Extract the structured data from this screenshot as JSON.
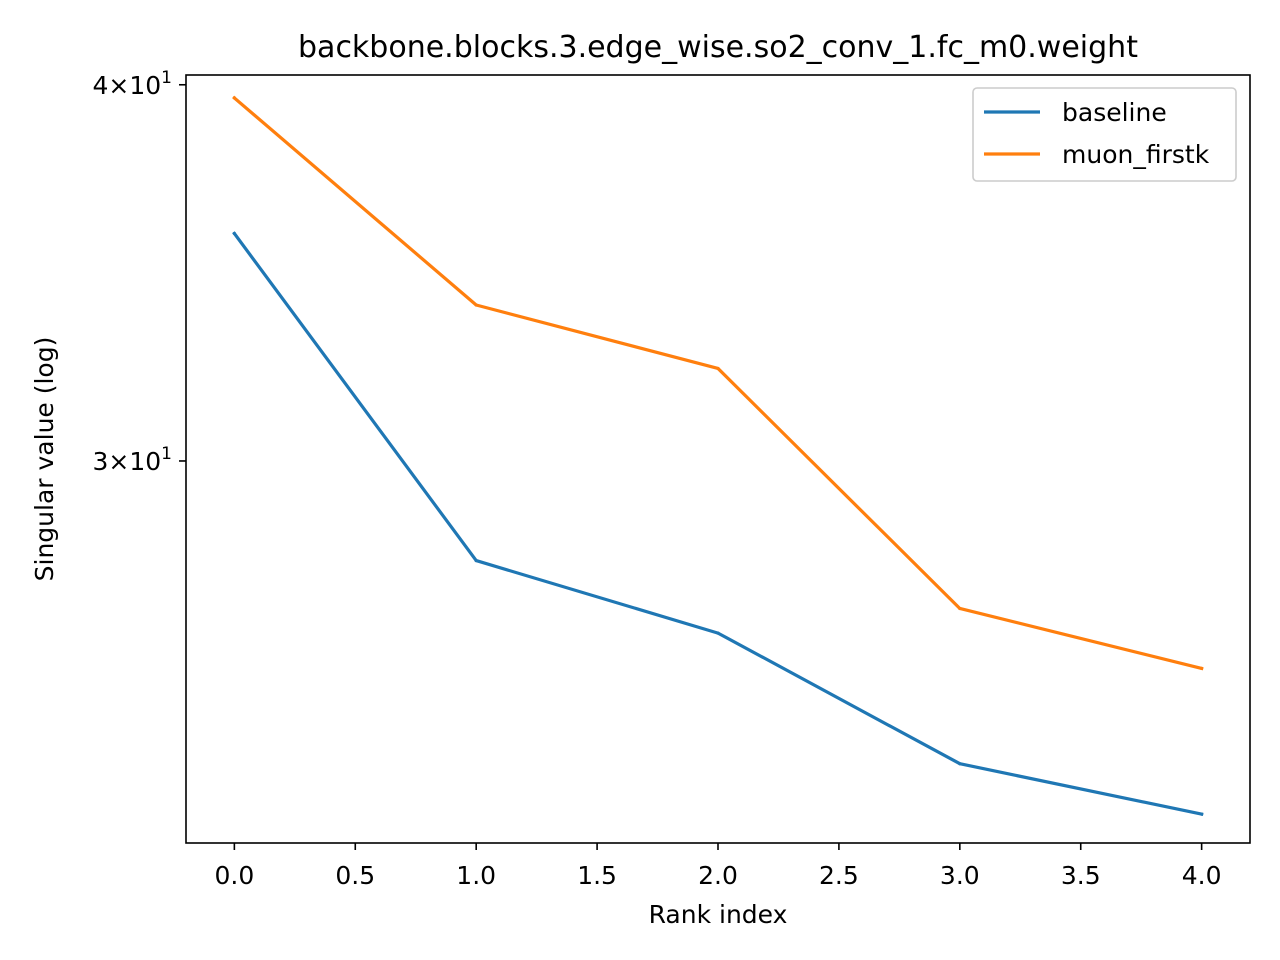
{
  "chart_data": {
    "type": "line",
    "title": "backbone.blocks.3.edge_wise.so2_conv_1.fc_m0.weight",
    "xlabel": "Rank index",
    "ylabel": "Singular value (log)",
    "yscale": "log",
    "xlim": [
      -0.2,
      4.2
    ],
    "ylim": [
      22.4,
      40.3
    ],
    "grid": false,
    "legend_position": "top-right",
    "x": [
      0,
      1,
      2,
      3,
      4
    ],
    "x_ticks": [
      "0.0",
      "0.5",
      "1.0",
      "1.5",
      "2.0",
      "2.5",
      "3.0",
      "3.5",
      "4.0"
    ],
    "y_ticks": [
      {
        "value": 30,
        "mantissa": "3",
        "base": "10",
        "exponent": "1"
      },
      {
        "value": 40,
        "mantissa": "4",
        "base": "10",
        "exponent": "1"
      }
    ],
    "series": [
      {
        "name": "baseline",
        "color": "#1f77b4",
        "values": [
          35.7,
          27.8,
          26.3,
          23.8,
          22.9
        ]
      },
      {
        "name": "muon_firstk",
        "color": "#ff7f0e",
        "values": [
          39.6,
          33.8,
          32.2,
          26.8,
          25.6
        ]
      }
    ]
  }
}
